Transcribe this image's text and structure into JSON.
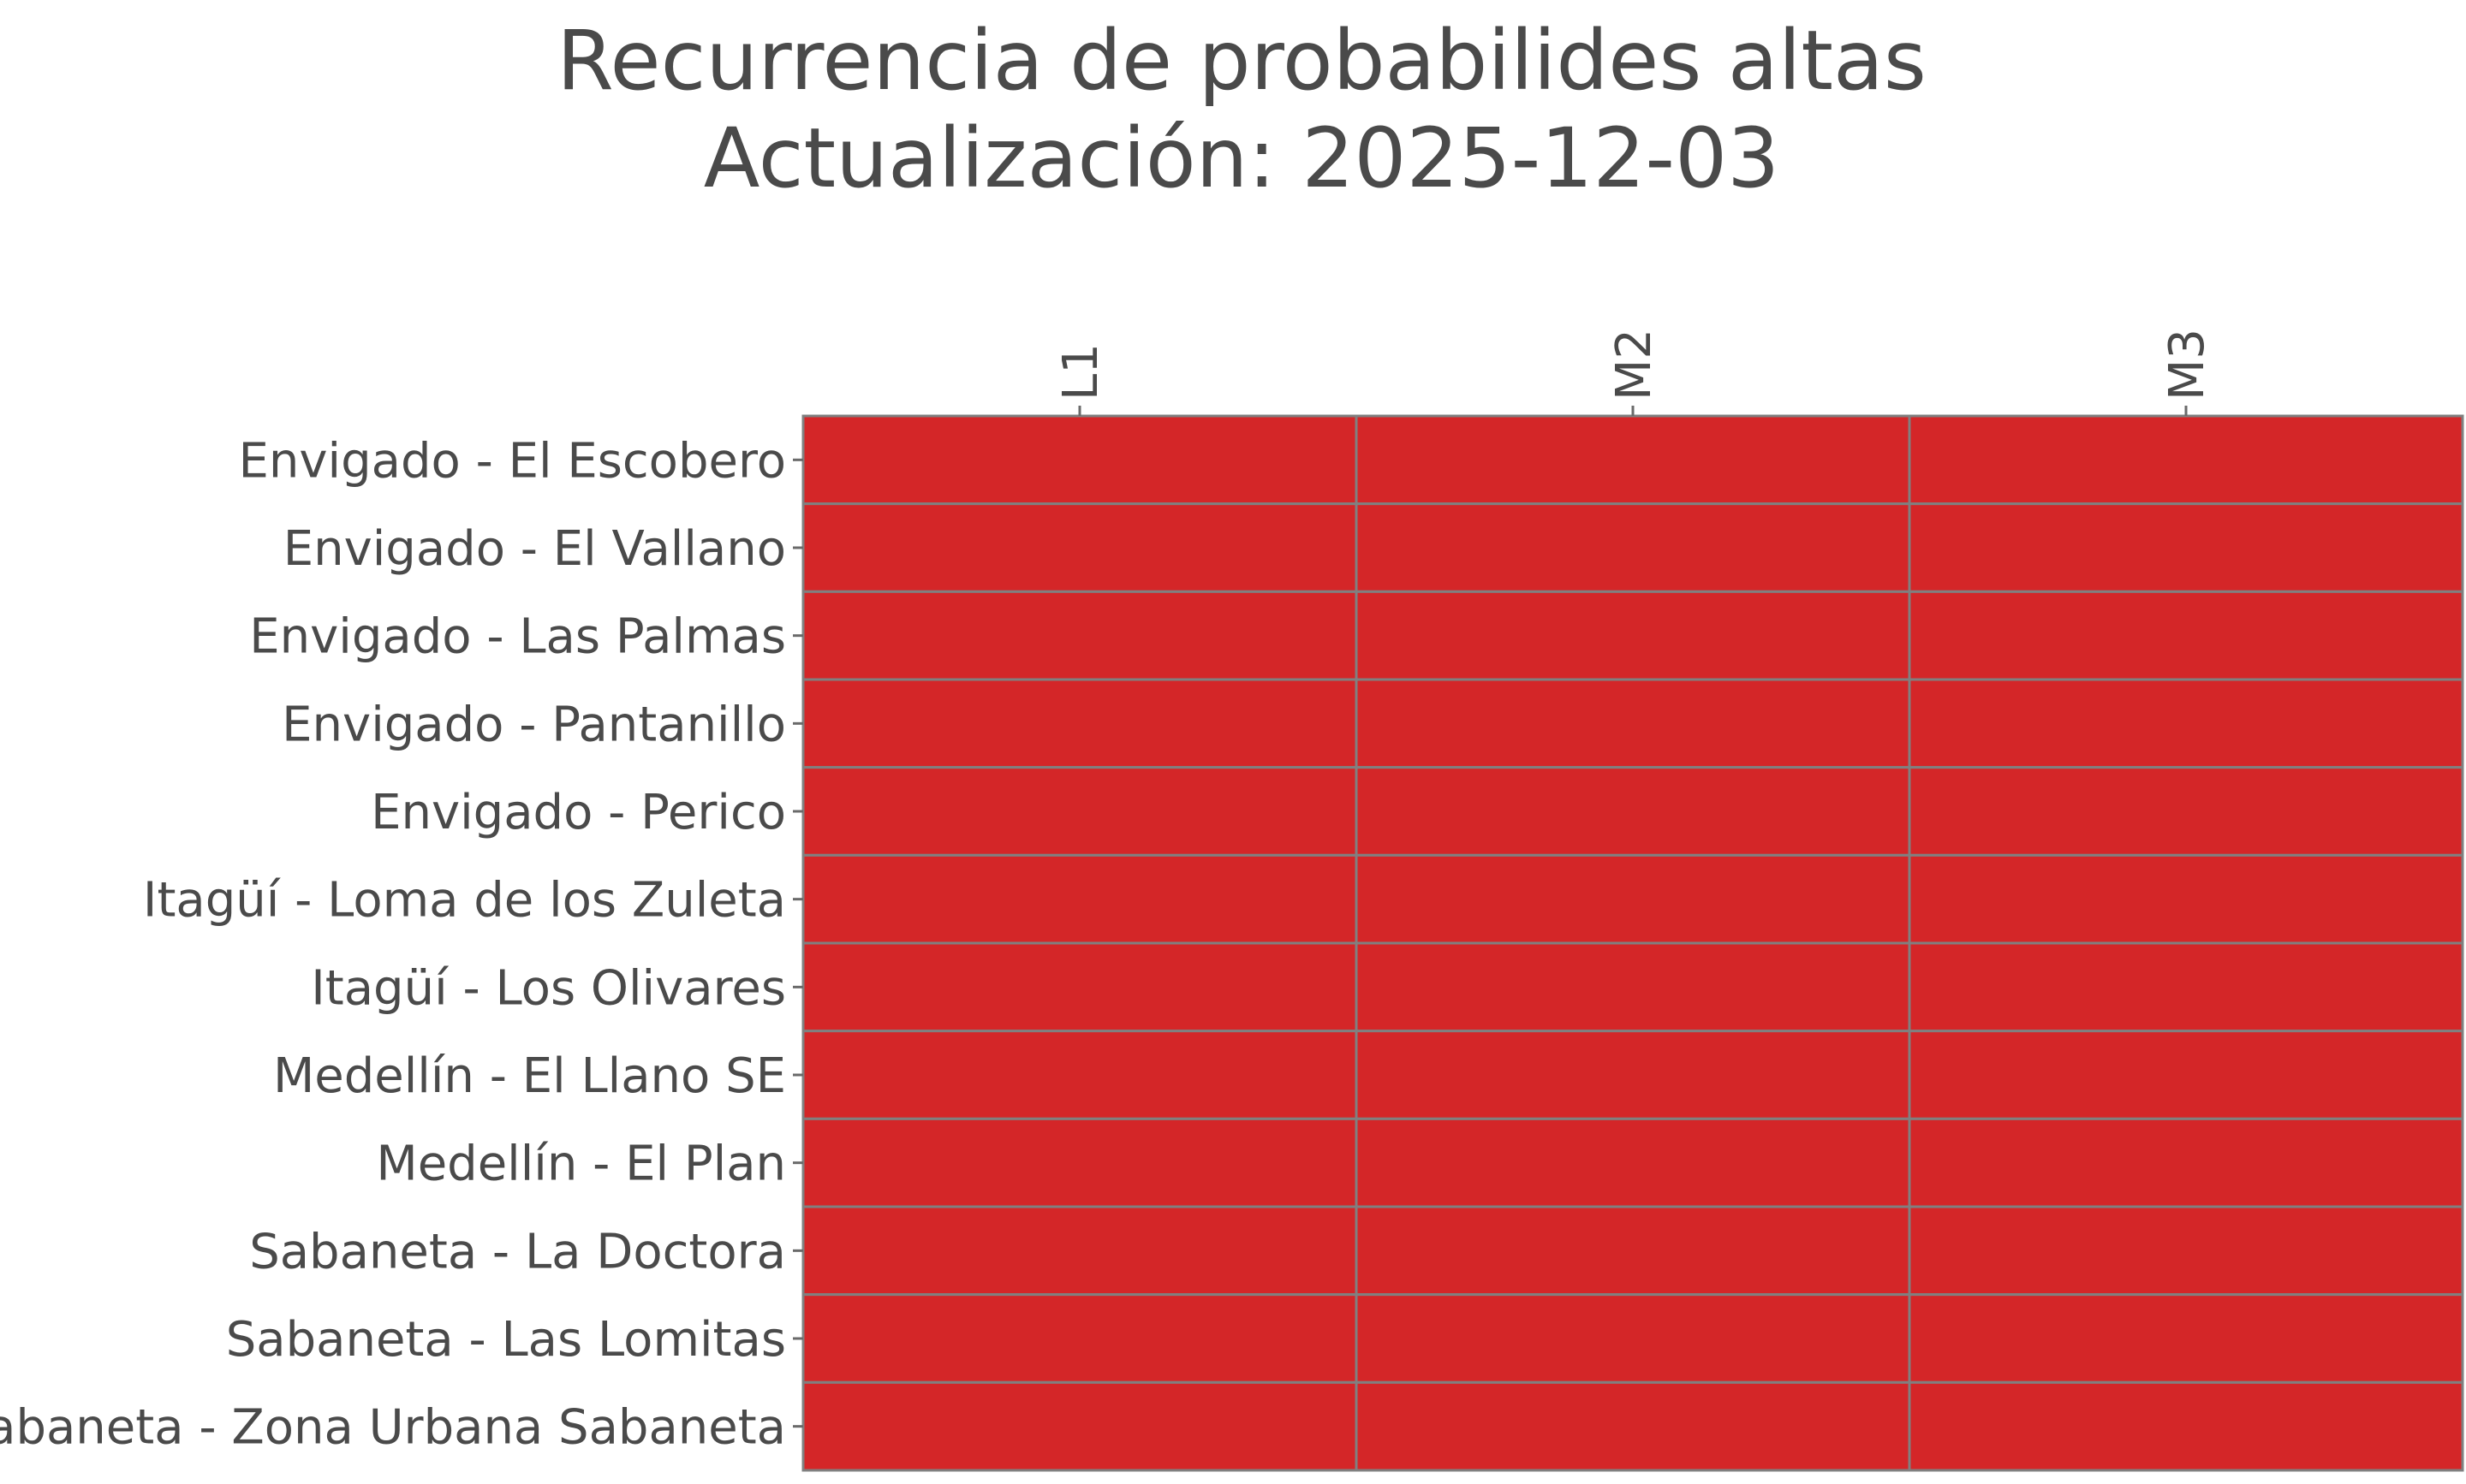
{
  "chart_data": {
    "type": "heatmap",
    "title": "Recurrencia de probabilides altas",
    "subtitle": "Actualización: 2025-12-03",
    "xlabel": "",
    "ylabel": "",
    "columns": [
      "L1",
      "M2",
      "M3"
    ],
    "rows": [
      "Envigado - El Escobero",
      "Envigado - El Vallano",
      "Envigado - Las Palmas",
      "Envigado - Pantanillo",
      "Envigado - Perico",
      "Itagüí - Loma de los Zuleta",
      "Itagüí - Los Olivares",
      "Medellín - El Llano SE",
      "Medellín - El Plan",
      "Sabaneta - La Doctora",
      "Sabaneta - Las Lomitas",
      "Sabaneta - Zona Urbana Sabaneta"
    ],
    "cell_color": "#d42628",
    "grid_color": "#808080",
    "grid": true,
    "x_axis_position": "top",
    "legend": "none"
  }
}
